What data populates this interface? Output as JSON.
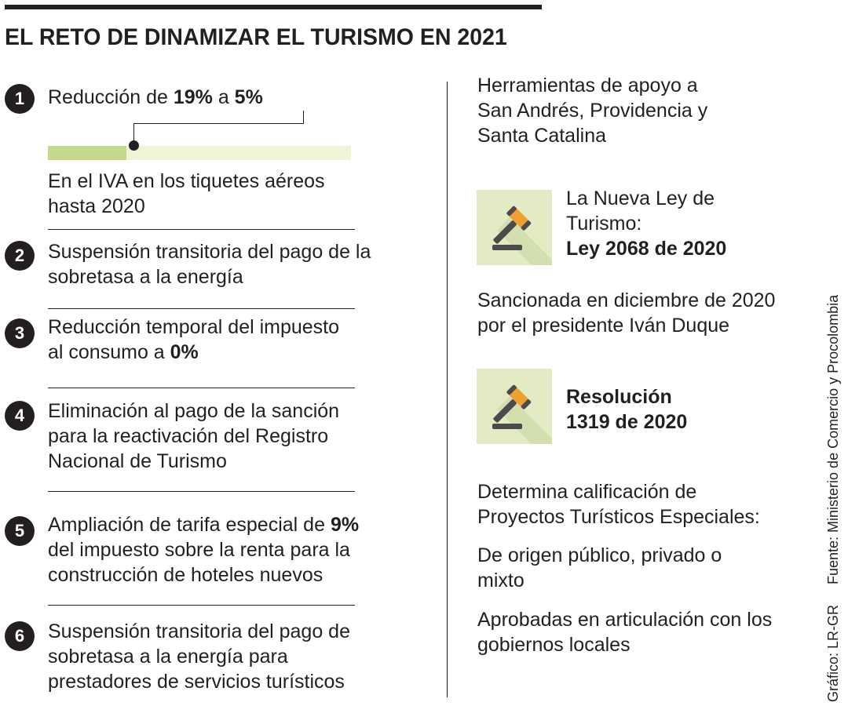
{
  "title": "EL RETO DE DINAMIZAR EL TURISMO EN 2021",
  "colors": {
    "bar_fill": "#c4d98b",
    "bar_bg": "#eef4d6",
    "icon_bg": "#e3ebc4",
    "text": "#231f20"
  },
  "iva_reduction": {
    "from_percent": 19,
    "to_percent": 5,
    "bar_fill_percent": 26
  },
  "measures": [
    {
      "number": "1",
      "parts": [
        "Reducción de ",
        "19%",
        " a ",
        "5%"
      ],
      "note_lines": [
        "En el IVA en los tiquetes aéreos",
        "hasta 2020"
      ]
    },
    {
      "number": "2",
      "lines": [
        "Suspensión transitoria del pago de la",
        "sobretasa a la energía"
      ]
    },
    {
      "number": "3",
      "lines": [
        "Reducción temporal del impuesto"
      ],
      "last_parts": [
        "al consumo a ",
        "0%"
      ]
    },
    {
      "number": "4",
      "lines": [
        "Eliminación al pago de la sanción",
        "para la reactivación del Registro",
        "Nacional de Turismo"
      ]
    },
    {
      "number": "5",
      "first_parts": [
        "Ampliación de tarifa especial de ",
        "9%"
      ],
      "lines": [
        "del impuesto sobre la renta para la",
        "construcción de hoteles nuevos"
      ]
    },
    {
      "number": "6",
      "lines": [
        "Suspensión transitoria del pago de",
        "sobretasa a la energía para",
        "prestadores de servicios turísticos"
      ]
    }
  ],
  "right": {
    "intro_lines": [
      "Herramientas de apoyo a",
      "San Andrés, Providencia y",
      "Santa Catalina"
    ],
    "law": {
      "icon": "gavel-icon",
      "lines": [
        "La Nueva Ley de",
        "Turismo:"
      ],
      "bold": "Ley 2068 de 2020"
    },
    "sanction_lines": [
      "Sancionada en diciembre de 2020",
      "por el presidente Iván Duque"
    ],
    "resolution": {
      "icon": "gavel-icon",
      "bold_lines": [
        "Resolución",
        "1319 de 2020"
      ]
    },
    "determina_lines": [
      "Determina calificación de",
      "Proyectos Turísticos Especiales:"
    ],
    "origin_lines": [
      "De origen público, privado o",
      "mixto"
    ],
    "approved_lines": [
      "Aprobadas en articulación con los",
      "gobiernos locales"
    ]
  },
  "source": "Fuente: Ministerio de Comercio y Procolombia",
  "credit": "Gráfico: LR-GR"
}
